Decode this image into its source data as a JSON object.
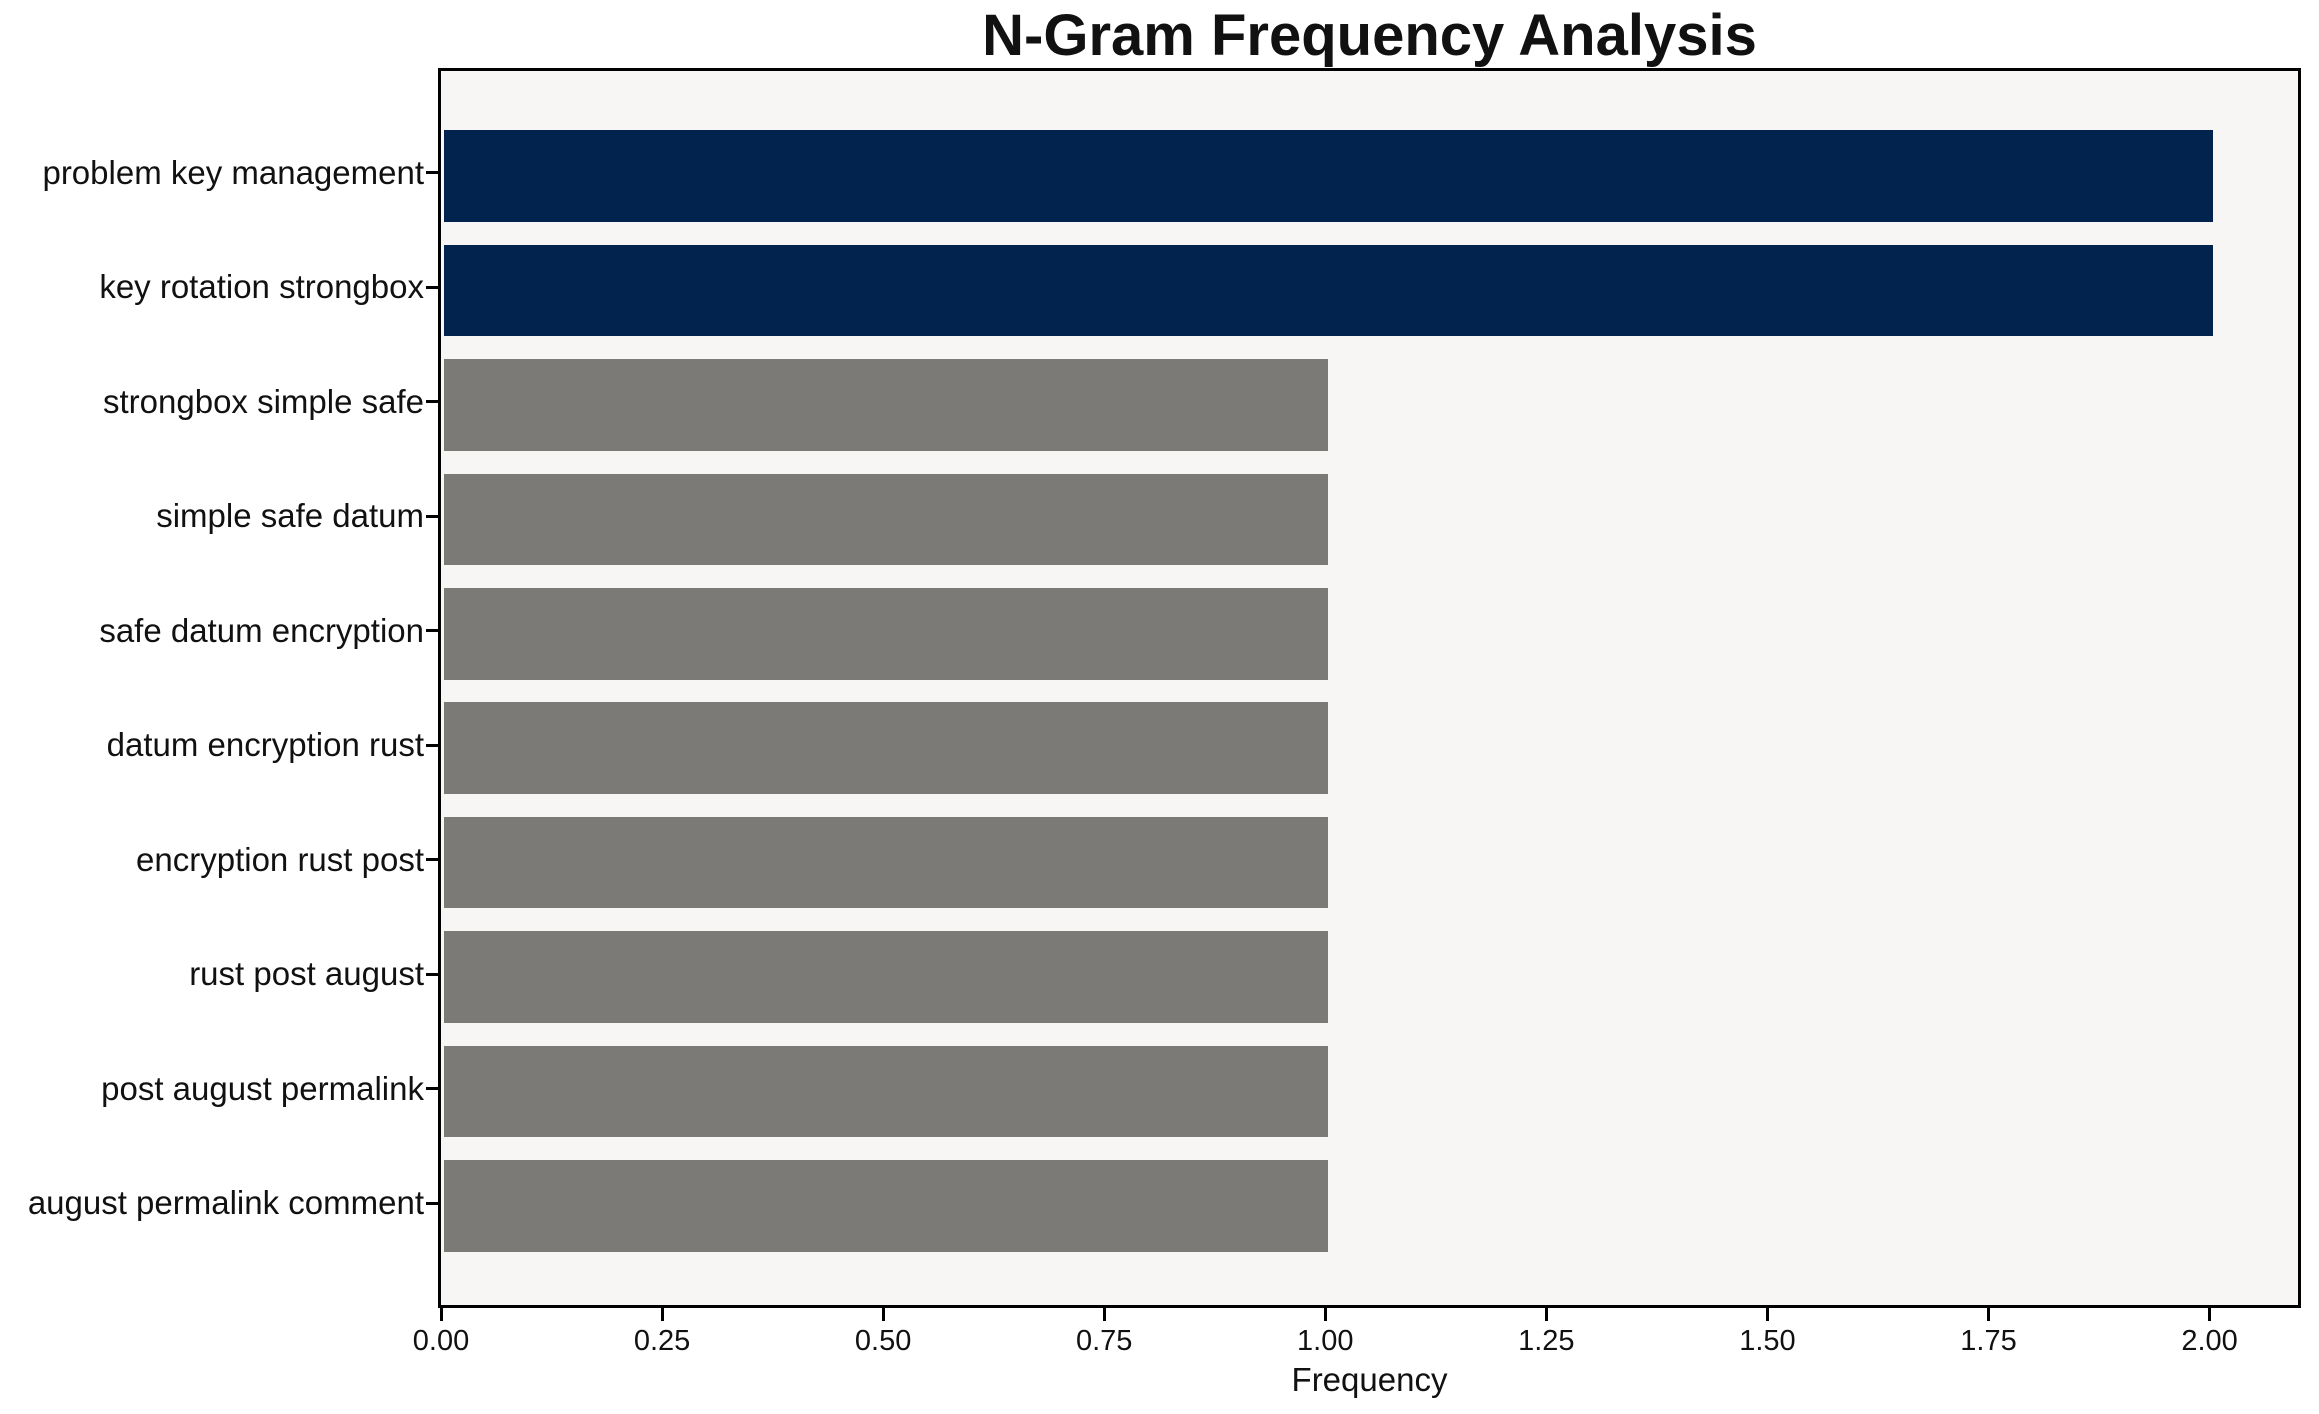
{
  "chart_data": {
    "type": "bar",
    "orientation": "horizontal",
    "title": "N-Gram Frequency Analysis",
    "xlabel": "Frequency",
    "ylabel": "",
    "categories": [
      "problem key management",
      "key rotation strongbox",
      "strongbox simple safe",
      "simple safe datum",
      "safe datum encryption",
      "datum encryption rust",
      "encryption rust post",
      "rust post august",
      "post august permalink",
      "august permalink comment"
    ],
    "values": [
      2,
      2,
      1,
      1,
      1,
      1,
      1,
      1,
      1,
      1
    ],
    "bar_colors": [
      "#02234d",
      "#02234d",
      "#7b7a77",
      "#7b7a77",
      "#7b7a77",
      "#7b7a77",
      "#7b7a77",
      "#7b7a77",
      "#7b7a77",
      "#7b7a77"
    ],
    "highlight_color": "#02234d",
    "default_color": "#7b7a77",
    "xlim": [
      0,
      2.1
    ],
    "x_ticks": [
      0,
      0.25,
      0.5,
      0.75,
      1.0,
      1.25,
      1.5,
      1.75,
      2.0
    ],
    "x_tick_labels": [
      "0.00",
      "0.25",
      "0.50",
      "0.75",
      "1.00",
      "1.25",
      "1.50",
      "1.75",
      "2.00"
    ],
    "grid": false,
    "legend": "none",
    "plot_background": "#f7f6f4",
    "figure_background": "#ffffff",
    "spine_color": "#000000"
  }
}
